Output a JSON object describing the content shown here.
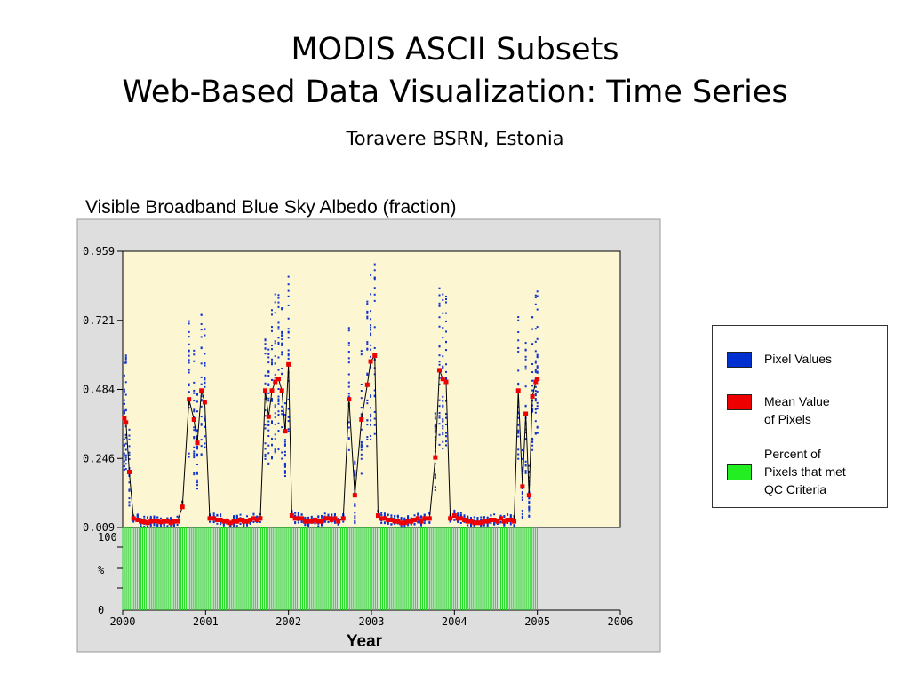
{
  "slide": {
    "title_line1": "MODIS ASCII Subsets",
    "title_line2": "Web-Based Data Visualization:  Time Series",
    "site": "Toravere BSRN, Estonia"
  },
  "chart_data": {
    "type": "scatter",
    "title": "Visible Broadband Blue Sky Albedo (fraction)",
    "xlabel": "Year",
    "ylabel": "",
    "xlim": [
      2000,
      2006
    ],
    "ylim": [
      0.009,
      0.959
    ],
    "x_ticks": [
      "2000",
      "2001",
      "2002",
      "2003",
      "2004",
      "2005",
      "2006"
    ],
    "y_ticks": [
      "0.009",
      "0.246",
      "0.484",
      "0.721",
      "0.959"
    ],
    "qc_ylim": [
      0,
      100
    ],
    "qc_y_ticks": [
      "0",
      "%",
      "100"
    ],
    "grid": false,
    "series": [
      {
        "name": "Mean Value of Pixels",
        "color": "#ee0000",
        "x": [
          2000.02,
          2000.04,
          2000.08,
          2000.13,
          2000.18,
          2000.22,
          2000.26,
          2000.3,
          2000.34,
          2000.38,
          2000.42,
          2000.46,
          2000.5,
          2000.54,
          2000.58,
          2000.62,
          2000.66,
          2000.72,
          2000.8,
          2000.86,
          2000.9,
          2000.95,
          2000.99,
          2001.05,
          2001.1,
          2001.14,
          2001.18,
          2001.22,
          2001.26,
          2001.3,
          2001.34,
          2001.38,
          2001.42,
          2001.46,
          2001.5,
          2001.54,
          2001.58,
          2001.62,
          2001.66,
          2001.72,
          2001.76,
          2001.8,
          2001.84,
          2001.88,
          2001.92,
          2001.96,
          2002.0,
          2002.04,
          2002.08,
          2002.12,
          2002.16,
          2002.2,
          2002.24,
          2002.28,
          2002.32,
          2002.36,
          2002.4,
          2002.44,
          2002.48,
          2002.52,
          2002.56,
          2002.6,
          2002.66,
          2002.73,
          2002.8,
          2002.88,
          2002.95,
          2002.99,
          2003.04,
          2003.08,
          2003.12,
          2003.16,
          2003.2,
          2003.24,
          2003.28,
          2003.32,
          2003.36,
          2003.4,
          2003.44,
          2003.48,
          2003.52,
          2003.56,
          2003.6,
          2003.64,
          2003.7,
          2003.77,
          2003.82,
          2003.86,
          2003.9,
          2003.95,
          2004.0,
          2004.04,
          2004.08,
          2004.12,
          2004.16,
          2004.2,
          2004.24,
          2004.28,
          2004.32,
          2004.36,
          2004.4,
          2004.44,
          2004.48,
          2004.52,
          2004.56,
          2004.6,
          2004.64,
          2004.68,
          2004.72,
          2004.77,
          2004.82,
          2004.86,
          2004.9,
          2004.94,
          2004.98,
          2005.0
        ],
        "y": [
          0.385,
          0.37,
          0.2,
          0.04,
          0.035,
          0.03,
          0.028,
          0.025,
          0.03,
          0.032,
          0.03,
          0.028,
          0.03,
          0.03,
          0.025,
          0.03,
          0.03,
          0.08,
          0.45,
          0.38,
          0.3,
          0.48,
          0.44,
          0.04,
          0.04,
          0.035,
          0.035,
          0.03,
          0.03,
          0.025,
          0.03,
          0.03,
          0.035,
          0.03,
          0.03,
          0.035,
          0.04,
          0.035,
          0.04,
          0.48,
          0.39,
          0.48,
          0.51,
          0.52,
          0.48,
          0.34,
          0.57,
          0.05,
          0.04,
          0.04,
          0.04,
          0.03,
          0.03,
          0.03,
          0.035,
          0.03,
          0.03,
          0.04,
          0.04,
          0.035,
          0.04,
          0.03,
          0.04,
          0.45,
          0.12,
          0.38,
          0.5,
          0.58,
          0.6,
          0.05,
          0.04,
          0.04,
          0.035,
          0.035,
          0.03,
          0.03,
          0.025,
          0.025,
          0.03,
          0.03,
          0.035,
          0.04,
          0.03,
          0.04,
          0.04,
          0.25,
          0.55,
          0.52,
          0.51,
          0.04,
          0.05,
          0.04,
          0.04,
          0.035,
          0.03,
          0.03,
          0.025,
          0.025,
          0.025,
          0.03,
          0.03,
          0.035,
          0.035,
          0.03,
          0.04,
          0.03,
          0.035,
          0.035,
          0.03,
          0.48,
          0.15,
          0.4,
          0.12,
          0.46,
          0.51,
          0.52
        ]
      }
    ],
    "legend": {
      "position": "right",
      "items": [
        {
          "label": "Pixel Values",
          "color": "#0022cc"
        },
        {
          "label": "Mean Value\nof Pixels",
          "color": "#ee0000"
        },
        {
          "label": "Percent of\nPixels that met\nQC Criteria",
          "color": "#22ee22"
        }
      ]
    }
  }
}
